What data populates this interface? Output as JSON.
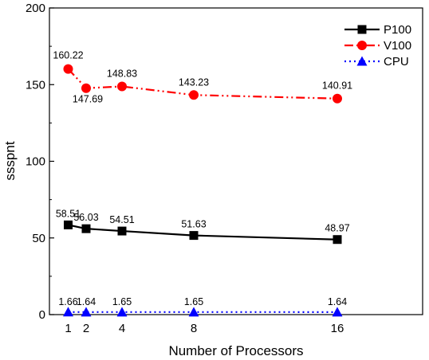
{
  "chart_data": {
    "type": "line",
    "title": "",
    "xlabel": "Number of Processors",
    "ylabel": "ssspnt",
    "x": [
      1,
      2,
      4,
      8,
      16
    ],
    "xlim": [
      0,
      22
    ],
    "ylim": [
      0,
      200
    ],
    "xticks": [
      1,
      2,
      4,
      8,
      16
    ],
    "yticks": [
      0,
      50,
      100,
      150,
      200
    ],
    "grid": false,
    "legend_position": "top-right",
    "series": [
      {
        "name": "P100",
        "values": [
          58.51,
          56.03,
          54.51,
          51.63,
          48.97
        ],
        "labels": [
          "58.51",
          "56.03",
          "54.51",
          "51.63",
          "48.97"
        ],
        "color": "#000000",
        "line_style": "solid",
        "marker": "square"
      },
      {
        "name": "V100",
        "values": [
          160.22,
          147.69,
          148.83,
          143.23,
          140.91
        ],
        "labels": [
          "160.22",
          "147.69",
          "148.83",
          "143.23",
          "140.91"
        ],
        "color": "#ff0000",
        "line_style": "dash-dot-dot",
        "marker": "circle"
      },
      {
        "name": "CPU",
        "values": [
          1.66,
          1.64,
          1.65,
          1.65,
          1.64
        ],
        "labels": [
          "1.66",
          "1.64",
          "1.65",
          "1.65",
          "1.64"
        ],
        "color": "#0000ff",
        "line_style": "dotted",
        "marker": "triangle"
      }
    ]
  }
}
